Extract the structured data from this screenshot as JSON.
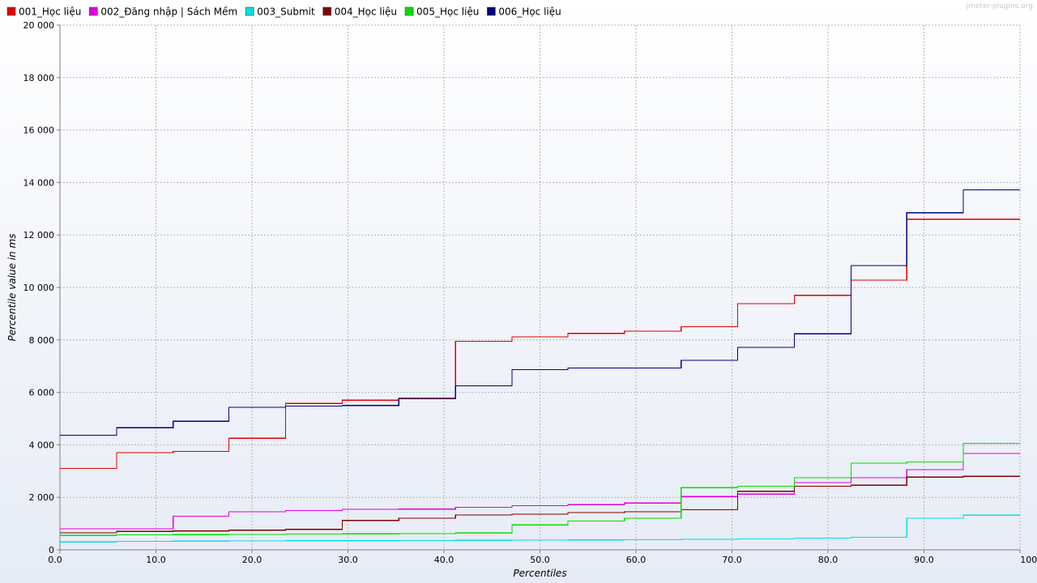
{
  "watermark": "jmeter-plugins.org",
  "chart_data": {
    "type": "line",
    "step": true,
    "xlabel": "Percentiles",
    "ylabel": "Percentile value in ms",
    "xlim": [
      0,
      100
    ],
    "ylim": [
      0,
      20000
    ],
    "xticks": [
      0,
      10,
      20,
      30,
      40,
      50,
      60,
      70,
      80,
      90,
      100
    ],
    "xtick_labels": [
      "0.0",
      "10.0",
      "20.0",
      "30.0",
      "40.0",
      "50.0",
      "60.0",
      "70.0",
      "80.0",
      "90.0",
      "100.0"
    ],
    "yticks": [
      0,
      2000,
      4000,
      6000,
      8000,
      10000,
      12000,
      14000,
      16000,
      18000,
      20000
    ],
    "ytick_labels": [
      "0",
      "2 000",
      "4 000",
      "6 000",
      "8 000",
      "10 000",
      "12 000",
      "14 000",
      "16 000",
      "18 000",
      "20 000"
    ],
    "grid": true,
    "legend_position": "top",
    "background": [
      "#ffffff",
      "#e6ebf5"
    ],
    "series": [
      {
        "name": "001_Học liệu",
        "color": "#e00000",
        "x": [
          0,
          5.9,
          11.8,
          17.6,
          23.5,
          29.4,
          35.3,
          41.2,
          47.1,
          52.9,
          58.8,
          64.7,
          70.6,
          76.5,
          82.4,
          88.2,
          94.1,
          100
        ],
        "y": [
          3100,
          3700,
          3750,
          4250,
          5580,
          5700,
          5780,
          7950,
          8120,
          8250,
          8330,
          8500,
          9380,
          9700,
          10280,
          12600,
          12600,
          12600
        ]
      },
      {
        "name": "002_Đăng nhập | Sách Mềm",
        "color": "#e000e0",
        "x": [
          0,
          5.9,
          11.8,
          17.6,
          23.5,
          29.4,
          35.3,
          41.2,
          47.1,
          52.9,
          58.8,
          64.7,
          70.6,
          76.5,
          82.4,
          88.2,
          94.1,
          100
        ],
        "y": [
          800,
          800,
          1280,
          1450,
          1500,
          1540,
          1550,
          1620,
          1680,
          1720,
          1780,
          2030,
          2120,
          2560,
          2750,
          3060,
          3670,
          3670
        ]
      },
      {
        "name": "003_Submit",
        "color": "#00e0e0",
        "x": [
          0,
          5.9,
          11.8,
          17.6,
          23.5,
          29.4,
          35.3,
          41.2,
          47.1,
          52.9,
          58.8,
          64.7,
          70.6,
          76.5,
          82.4,
          88.2,
          94.1,
          100
        ],
        "y": [
          300,
          320,
          330,
          340,
          345,
          350,
          355,
          360,
          370,
          380,
          390,
          400,
          420,
          450,
          480,
          1200,
          1320,
          1320
        ]
      },
      {
        "name": "004_Học liệu",
        "color": "#800000",
        "x": [
          0,
          5.9,
          11.8,
          17.6,
          23.5,
          29.4,
          35.3,
          41.2,
          47.1,
          52.9,
          58.8,
          64.7,
          70.6,
          76.5,
          82.4,
          88.2,
          94.1,
          100
        ],
        "y": [
          650,
          700,
          720,
          750,
          780,
          1120,
          1200,
          1330,
          1360,
          1420,
          1450,
          1530,
          2230,
          2420,
          2460,
          2770,
          2800,
          2800
        ]
      },
      {
        "name": "005_Học liệu",
        "color": "#00e000",
        "x": [
          0,
          5.9,
          11.8,
          17.6,
          23.5,
          29.4,
          35.3,
          41.2,
          47.1,
          52.9,
          58.8,
          64.7,
          70.6,
          76.5,
          82.4,
          88.2,
          94.1,
          100
        ],
        "y": [
          550,
          570,
          580,
          590,
          600,
          610,
          620,
          640,
          950,
          1100,
          1200,
          2370,
          2420,
          2750,
          3300,
          3350,
          4060,
          4060
        ]
      },
      {
        "name": "006_Học liệu",
        "color": "#000080",
        "x": [
          0,
          5.9,
          11.8,
          17.6,
          23.5,
          29.4,
          35.3,
          41.2,
          47.1,
          52.9,
          58.8,
          64.7,
          70.6,
          76.5,
          82.4,
          88.2,
          94.1,
          100
        ],
        "y": [
          4370,
          4650,
          4900,
          5430,
          5480,
          5500,
          5760,
          6250,
          6870,
          6930,
          6930,
          7220,
          7720,
          8230,
          10830,
          12850,
          13720,
          13720
        ]
      }
    ]
  }
}
